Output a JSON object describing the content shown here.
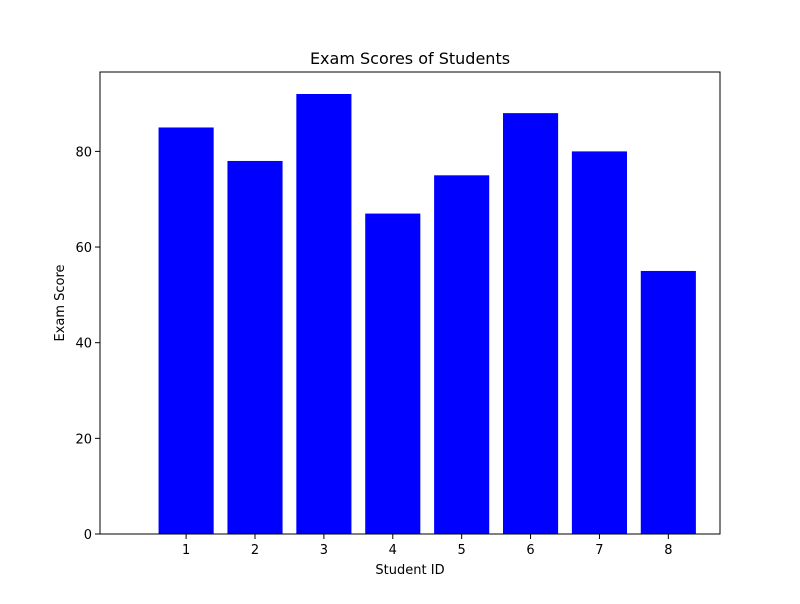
{
  "chart_data": {
    "type": "bar",
    "title": "Exam Scores of Students",
    "xlabel": "Student ID",
    "ylabel": "Exam Score",
    "categories": [
      "1",
      "2",
      "3",
      "4",
      "5",
      "6",
      "7",
      "8"
    ],
    "values": [
      85,
      78,
      92,
      67,
      75,
      88,
      80,
      55
    ],
    "ylim": [
      0,
      96.6
    ],
    "yticks": [
      0,
      20,
      40,
      60,
      80
    ],
    "bar_color": "#0000ff",
    "grid": false,
    "legend": "none"
  }
}
